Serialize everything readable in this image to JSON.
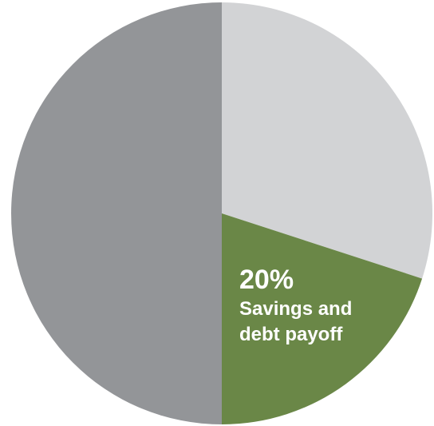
{
  "chart_data": {
    "type": "pie",
    "start_angle_deg": 0,
    "direction": "clockwise",
    "slices": [
      {
        "value": 30,
        "color": "#d2d3d5",
        "percent_label": "",
        "label_lines": []
      },
      {
        "value": 20,
        "color": "#6a8747",
        "percent_label": "20%",
        "label_lines": [
          "Savings and",
          "debt payoff"
        ]
      },
      {
        "value": 50,
        "color": "#939598",
        "percent_label": "",
        "label_lines": []
      }
    ],
    "legend": "none"
  }
}
